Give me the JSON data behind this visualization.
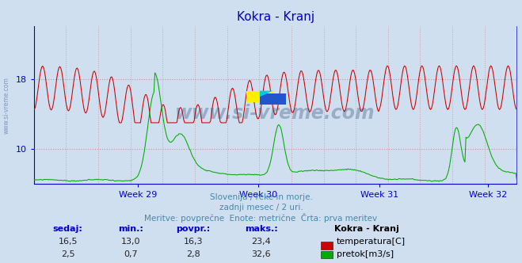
{
  "title": "Kokra - Kranj",
  "title_color": "#0000cc",
  "bg_color": "#d0dff0",
  "plot_bg_color": "#d0dff0",
  "axis_color": "#0000cc",
  "grid_color": "#cc8888",
  "xlabel_weeks": [
    "Week 29",
    "Week 30",
    "Week 31",
    "Week 32"
  ],
  "xlabel_week_positions": [
    0.215,
    0.465,
    0.715,
    0.94
  ],
  "ylim_min": 6,
  "ylim_max": 24,
  "ytick_vals": [
    10,
    18
  ],
  "temp_color": "#cc0000",
  "flow_color": "#00aa00",
  "watermark": "www.si-vreme.com",
  "watermark_color": "#1a3a6a",
  "watermark_alpha": 0.3,
  "subtitle1": "Slovenija / reke in morje.",
  "subtitle2": "zadnji mesec / 2 uri.",
  "subtitle3": "Meritve: povprečne  Enote: metrične  Črta: prva meritev",
  "subtitle_color": "#4488aa",
  "table_headers": [
    "sedaj:",
    "min.:",
    "povpr.:",
    "maks.:"
  ],
  "table_header_color": "#0000cc",
  "table_values_temp": [
    "16,5",
    "13,0",
    "16,3",
    "23,4"
  ],
  "table_values_flow": [
    "2,5",
    "0,7",
    "2,8",
    "32,6"
  ],
  "legend_title": "Kokra - Kranj",
  "legend_temp_label": "temperatura[C]",
  "legend_flow_label": "pretok[m3/s]",
  "left_label": "www.si-vreme.com",
  "left_label_color": "#4466aa",
  "n_points": 504,
  "days": 28
}
